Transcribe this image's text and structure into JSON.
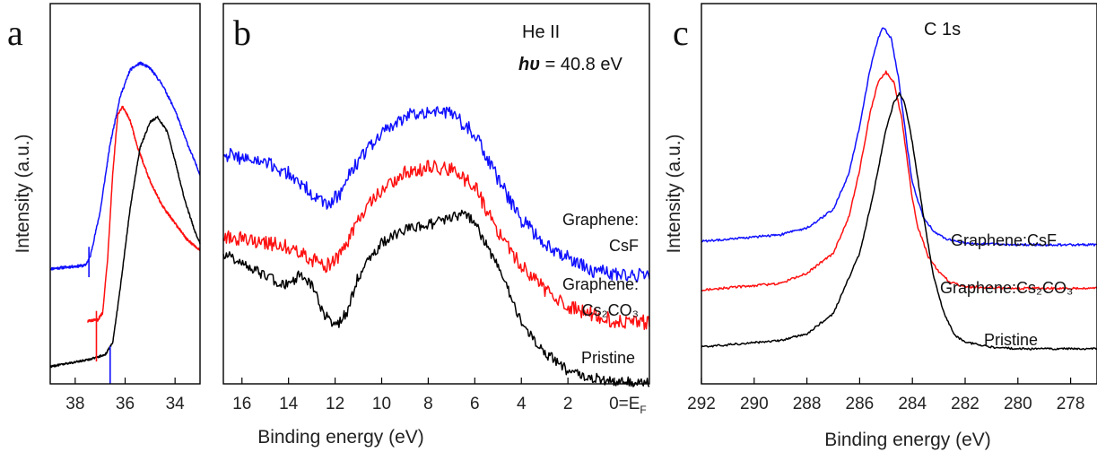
{
  "colors": {
    "blue": "#1010ff",
    "red": "#ff1010",
    "black": "#000000"
  },
  "chart_data": [
    {
      "panel": "a",
      "type": "line",
      "ylabel": "Intensity (a.u.)",
      "xlabel": "",
      "xlim": [
        39,
        33
      ],
      "ylim": [
        0,
        10
      ],
      "xticks": [
        38,
        36,
        34
      ],
      "xtick_labels": [
        "38",
        "36",
        "34"
      ],
      "grid": false,
      "series": [
        {
          "color": "blue",
          "noise": 0.04,
          "x": [
            39,
            37.6,
            37.4,
            37.0,
            36.6,
            36.2,
            35.8,
            35.4,
            35.0,
            34.5,
            34.0,
            33.5,
            33.0
          ],
          "y": [
            3.2,
            3.3,
            3.55,
            4.9,
            6.9,
            8.3,
            9.1,
            9.3,
            9.15,
            8.65,
            7.9,
            6.9,
            6.0
          ]
        },
        {
          "color": "red",
          "noise": 0.04,
          "x": [
            37.5,
            37.1,
            36.9,
            36.7,
            36.5,
            36.3,
            36.1,
            35.8,
            35.5,
            35.0,
            34.5,
            34.0,
            33.5,
            33.0
          ],
          "y": [
            1.65,
            1.68,
            1.9,
            3.5,
            6.0,
            7.75,
            8.0,
            7.6,
            6.8,
            5.8,
            5.05,
            4.55,
            4.05,
            3.75
          ]
        },
        {
          "color": "black",
          "noise": 0.03,
          "x": [
            39,
            37.5,
            36.8,
            36.5,
            36.2,
            35.8,
            35.4,
            35.0,
            34.7,
            34.3,
            34.0,
            33.6,
            33.2,
            33.0
          ],
          "y": [
            0.3,
            0.5,
            0.65,
            1.0,
            2.6,
            5.0,
            6.8,
            7.55,
            7.7,
            7.25,
            6.4,
            5.2,
            4.3,
            3.95
          ]
        }
      ],
      "markers": [
        {
          "x": 37.45,
          "color": "blue",
          "y0": 2.95,
          "y1": 3.85
        },
        {
          "x": 37.15,
          "color": "red",
          "y0": 0.45,
          "y1": 1.95
        },
        {
          "x": 36.6,
          "color": "blue",
          "y0": -0.2,
          "y1": 0.9
        }
      ]
    },
    {
      "panel": "b",
      "type": "line",
      "xlabel": "Binding energy (eV)",
      "xlim": [
        16.8,
        -1.5
      ],
      "ylim": [
        0,
        10
      ],
      "xticks": [
        16,
        14,
        12,
        10,
        8,
        6,
        4,
        2,
        0
      ],
      "xtick_labels": [
        "16",
        "14",
        "12",
        "10",
        "8",
        "6",
        "4",
        "2",
        "0"
      ],
      "zero_tick_suffix": "=E",
      "zero_tick_subscript": "F",
      "annotation_line1": "He II",
      "annotation_line2_symbol": "hυ",
      "annotation_line2_rest": " = 40.8 eV",
      "grid": false,
      "series": [
        {
          "name": "Graphene:\nCsF",
          "color": "blue",
          "noise": 0.22,
          "x": [
            16.8,
            15.0,
            14.0,
            13.0,
            12.4,
            11.8,
            11.0,
            10.0,
            9.0,
            8.0,
            7.0,
            6.0,
            5.0,
            4.0,
            3.0,
            2.0,
            1.0,
            0.0,
            -1.5
          ],
          "y": [
            7.0,
            6.7,
            6.4,
            5.8,
            5.4,
            5.8,
            6.8,
            7.6,
            8.1,
            8.3,
            8.2,
            7.6,
            6.2,
            5.0,
            4.3,
            3.85,
            3.5,
            3.35,
            3.3
          ]
        },
        {
          "name": "Graphene:\nCs₂CO₃",
          "color": "red",
          "noise": 0.22,
          "x": [
            16.8,
            15.0,
            14.0,
            13.0,
            12.4,
            11.8,
            11.0,
            10.0,
            9.0,
            8.0,
            7.0,
            6.0,
            5.0,
            4.0,
            3.0,
            2.0,
            1.0,
            0.0,
            -1.5
          ],
          "y": [
            4.5,
            4.3,
            4.2,
            3.8,
            3.6,
            3.9,
            5.0,
            5.9,
            6.4,
            6.6,
            6.5,
            6.0,
            4.6,
            3.6,
            2.9,
            2.4,
            2.15,
            1.95,
            1.9
          ]
        },
        {
          "name": "Pristine",
          "color": "black",
          "noise": 0.16,
          "x": [
            16.8,
            15.0,
            14.0,
            13.5,
            13.0,
            12.5,
            12.0,
            11.5,
            11.0,
            10.0,
            9.0,
            8.0,
            7.0,
            6.5,
            6.0,
            5.0,
            4.0,
            3.0,
            2.0,
            1.0,
            0.0,
            -1.5
          ],
          "y": [
            4.0,
            3.3,
            3.0,
            3.4,
            3.0,
            2.2,
            1.75,
            2.2,
            3.3,
            4.3,
            4.7,
            4.85,
            5.05,
            5.2,
            4.9,
            3.6,
            1.9,
            1.0,
            0.45,
            0.25,
            0.12,
            0.08
          ]
        }
      ]
    },
    {
      "panel": "c",
      "type": "line",
      "ylabel": "Intensity (a.u.)",
      "xlabel": "Binding energy (eV)",
      "xlim": [
        292,
        277
      ],
      "ylim": [
        0,
        10
      ],
      "xticks": [
        292,
        290,
        288,
        286,
        284,
        282,
        280,
        278
      ],
      "xtick_labels": [
        "292",
        "290",
        "288",
        "286",
        "284",
        "282",
        "280",
        "278"
      ],
      "annotation": "C 1s",
      "grid": false,
      "series": [
        {
          "name": "Graphene:CsF",
          "color": "blue",
          "noise": 0.035,
          "x": [
            292,
            289,
            288,
            287.0,
            286.4,
            286.0,
            285.6,
            285.3,
            285.1,
            284.8,
            284.5,
            284.2,
            284.0,
            283.6,
            283.2,
            282.8,
            282.0,
            280.0,
            277
          ],
          "y": [
            3.55,
            3.75,
            3.95,
            4.5,
            5.6,
            7.0,
            8.7,
            9.6,
            9.95,
            9.6,
            8.3,
            6.4,
            5.3,
            4.3,
            3.85,
            3.65,
            3.5,
            3.45,
            3.45
          ]
        },
        {
          "name": "Graphene:Cs₂CO₃",
          "color": "red",
          "noise": 0.035,
          "x": [
            292,
            289,
            288,
            287.0,
            286.4,
            286.0,
            285.6,
            285.3,
            285.0,
            284.7,
            284.4,
            284.0,
            283.8,
            283.4,
            283.0,
            282.6,
            282.0,
            280.0,
            277
          ],
          "y": [
            2.1,
            2.3,
            2.6,
            3.2,
            4.3,
            5.7,
            7.4,
            8.3,
            8.6,
            8.3,
            7.2,
            4.8,
            4.0,
            3.1,
            2.65,
            2.35,
            2.2,
            2.15,
            2.15
          ]
        },
        {
          "name": "Pristine",
          "color": "black",
          "noise": 0.03,
          "x": [
            292,
            289,
            288,
            287.0,
            286.0,
            285.5,
            285.0,
            284.7,
            284.5,
            284.3,
            284.0,
            283.6,
            283.2,
            282.8,
            282.4,
            282.0,
            281.0,
            280.0,
            277
          ],
          "y": [
            0.4,
            0.6,
            0.8,
            1.4,
            3.2,
            4.9,
            6.9,
            7.7,
            7.95,
            7.7,
            6.5,
            4.4,
            2.5,
            1.4,
            0.75,
            0.55,
            0.4,
            0.35,
            0.35
          ]
        }
      ]
    }
  ]
}
